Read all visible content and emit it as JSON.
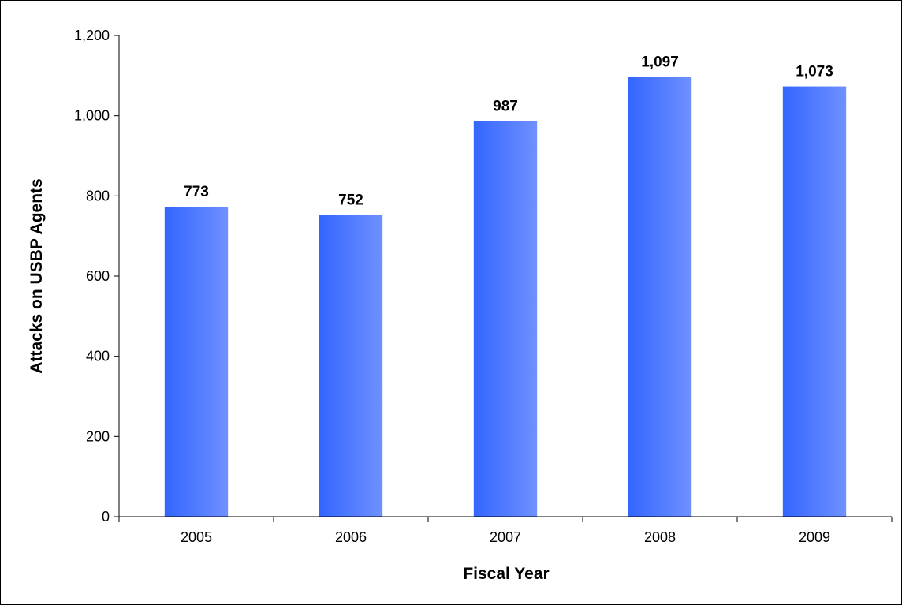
{
  "chart_data": {
    "type": "bar",
    "title": "",
    "xlabel": "Fiscal Year",
    "ylabel": "Attacks on USBP Agents",
    "categories": [
      "2005",
      "2006",
      "2007",
      "2008",
      "2009"
    ],
    "values": [
      773,
      752,
      987,
      1097,
      1073
    ],
    "data_labels": [
      "773",
      "752",
      "987",
      "1,097",
      "1,073"
    ],
    "ylim": [
      0,
      1200
    ],
    "yticks": [
      0,
      200,
      400,
      600,
      800,
      1000,
      1200
    ],
    "ytick_labels": [
      "0",
      "200",
      "400",
      "600",
      "800",
      "1,000",
      "1,200"
    ],
    "grid": false,
    "legend": "none",
    "colors": {
      "bar_left": "#3366ff",
      "bar_right": "#6f90ff",
      "axis": "#000000"
    }
  }
}
